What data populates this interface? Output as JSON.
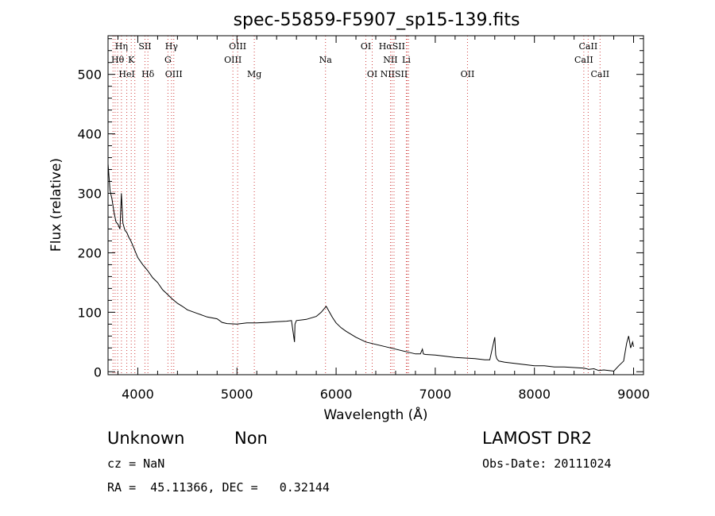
{
  "chart_data": {
    "type": "line",
    "title": "spec-55859-F5907_sp15-139.fits",
    "xlabel": "Wavelength (Å)",
    "ylabel": "Flux (relative)",
    "xlim": [
      3700,
      9100
    ],
    "ylim": [
      -5,
      565
    ],
    "xticks": [
      4000,
      5000,
      6000,
      7000,
      8000,
      9000
    ],
    "yticks": [
      0,
      100,
      200,
      300,
      400,
      500
    ],
    "grid": false,
    "line_color": "#000000",
    "marker_line_color": "#d04040",
    "series": [
      {
        "x": [
          3700,
          3720,
          3740,
          3760,
          3780,
          3800,
          3820,
          3835,
          3850,
          3870,
          3890,
          3910,
          3930,
          3960,
          4000,
          4050,
          4100,
          4150,
          4200,
          4250,
          4300,
          4350,
          4400,
          4450,
          4500,
          4600,
          4700,
          4800,
          4850,
          4900,
          5000,
          5100,
          5200,
          5300,
          5400,
          5500,
          5550,
          5580,
          5585,
          5600,
          5700,
          5800,
          5850,
          5880,
          5900,
          5920,
          5940,
          5960,
          5980,
          6000,
          6050,
          6100,
          6200,
          6300,
          6400,
          6500,
          6600,
          6700,
          6800,
          6850,
          6870,
          6880,
          6900,
          7000,
          7100,
          7200,
          7300,
          7400,
          7500,
          7550,
          7600,
          7610,
          7620,
          7630,
          7640,
          7700,
          7800,
          7900,
          8000,
          8100,
          8200,
          8300,
          8400,
          8500,
          8550,
          8600,
          8650,
          8700,
          8750,
          8800,
          8850,
          8900,
          8930,
          8950,
          8970,
          8990,
          9000
        ],
        "y": [
          350,
          305,
          290,
          268,
          252,
          248,
          240,
          300,
          250,
          238,
          234,
          226,
          220,
          208,
          192,
          180,
          170,
          158,
          150,
          138,
          130,
          122,
          115,
          110,
          104,
          98,
          92,
          89,
          83,
          81,
          80,
          82,
          82,
          83,
          84,
          85,
          86,
          50,
          80,
          86,
          88,
          93,
          100,
          106,
          110,
          104,
          98,
          92,
          87,
          82,
          74,
          68,
          58,
          50,
          46,
          42,
          38,
          34,
          30,
          30,
          38,
          30,
          29,
          28,
          26,
          24,
          23,
          22,
          20,
          20,
          58,
          28,
          22,
          20,
          18,
          16,
          14,
          12,
          10,
          10,
          8,
          8,
          7,
          6,
          4,
          5,
          2,
          3,
          2,
          1,
          10,
          18,
          48,
          60,
          40,
          50,
          42
        ]
      }
    ],
    "line_labels": [
      {
        "label": "Hη",
        "wavelength": 3835,
        "row": 1
      },
      {
        "label": "Hθ",
        "wavelength": 3797,
        "row": 2
      },
      {
        "label": "K",
        "wavelength": 3934,
        "row": 2
      },
      {
        "label": "HeI",
        "wavelength": 3889,
        "row": 3
      },
      {
        "label": "SII",
        "wavelength": 4072,
        "row": 1
      },
      {
        "label": "Hδ",
        "wavelength": 4102,
        "row": 3
      },
      {
        "label": "Hγ",
        "wavelength": 4340,
        "row": 1
      },
      {
        "label": "G",
        "wavelength": 4304,
        "row": 2
      },
      {
        "label": "OIII",
        "wavelength": 4363,
        "row": 3
      },
      {
        "label": "OIII",
        "wavelength": 5007,
        "row": 1
      },
      {
        "label": "OIII",
        "wavelength": 4959,
        "row": 2
      },
      {
        "label": "Mg",
        "wavelength": 5175,
        "row": 3
      },
      {
        "label": "Na",
        "wavelength": 5893,
        "row": 2
      },
      {
        "label": "OI",
        "wavelength": 6300,
        "row": 1
      },
      {
        "label": "OI",
        "wavelength": 6364,
        "row": 3
      },
      {
        "label": "HαSII",
        "wavelength": 6563,
        "row": 1
      },
      {
        "label": "NII",
        "wavelength": 6548,
        "row": 2
      },
      {
        "label": "Li",
        "wavelength": 6708,
        "row": 2
      },
      {
        "label": "NIISII",
        "wavelength": 6584,
        "row": 3
      },
      {
        "label": "OII",
        "wavelength": 7325,
        "row": 3
      },
      {
        "label": "CaII",
        "wavelength": 8542,
        "row": 1
      },
      {
        "label": "CaII",
        "wavelength": 8498,
        "row": 2
      },
      {
        "label": "CaII",
        "wavelength": 8662,
        "row": 3
      }
    ],
    "marker_wavelengths": [
      3750,
      3771,
      3797,
      3835,
      3889,
      3934,
      3970,
      4072,
      4102,
      4304,
      4340,
      4363,
      4959,
      5007,
      5175,
      5893,
      6300,
      6364,
      6548,
      6563,
      6584,
      6708,
      6717,
      6731,
      7325,
      8498,
      8542,
      8662
    ]
  },
  "footer": {
    "object_class": "Unknown",
    "subclass": "Non",
    "survey": "LAMOST DR2",
    "cz": "cz = NaN",
    "obs_date": "Obs-Date: 20111024",
    "coords": "RA =  45.11366, DEC =   0.32144"
  }
}
